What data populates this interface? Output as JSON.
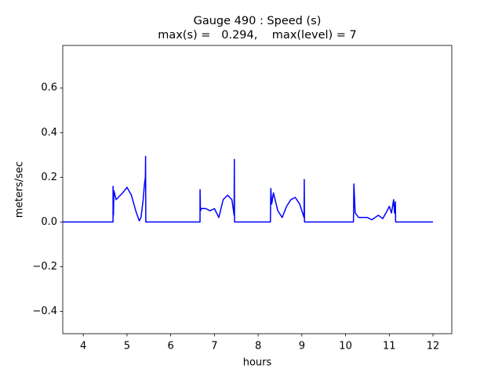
{
  "chart_data": {
    "type": "line",
    "title": "Gauge 490 : Speed (s)",
    "subtitle": "max(s) =   0.294,    max(level) = 7",
    "x_label": "hours",
    "y_label": "meters/sec",
    "color": "#0000ff",
    "x": [
      3.53,
      4.68,
      4.681,
      4.69,
      4.7,
      4.75,
      4.9,
      5.0,
      5.1,
      5.2,
      5.28,
      5.32,
      5.37,
      5.4,
      5.42,
      5.425,
      5.43,
      6.67,
      6.671,
      6.68,
      6.7,
      6.8,
      6.9,
      7.0,
      7.1,
      7.2,
      7.3,
      7.4,
      7.45,
      7.455,
      7.46,
      8.28,
      8.29,
      8.31,
      8.35,
      8.45,
      8.55,
      8.65,
      8.75,
      8.85,
      8.95,
      9.05,
      9.055,
      9.06,
      10.18,
      10.19,
      10.22,
      10.3,
      10.5,
      10.6,
      10.75,
      10.85,
      10.95,
      11.0,
      11.05,
      11.1,
      11.12,
      11.14,
      11.145,
      11.15,
      12.0
    ],
    "values": [
      0,
      0,
      0.16,
      0.03,
      0.14,
      0.1,
      0.13,
      0.155,
      0.12,
      0.05,
      0.005,
      0.02,
      0.1,
      0.17,
      0.2,
      0.294,
      0,
      0,
      0.145,
      0.05,
      0.06,
      0.06,
      0.05,
      0.06,
      0.02,
      0.1,
      0.12,
      0.1,
      0.03,
      0.28,
      0,
      0,
      0.15,
      0.08,
      0.13,
      0.05,
      0.02,
      0.07,
      0.1,
      0.11,
      0.08,
      0.02,
      0.19,
      0,
      0,
      0.17,
      0.04,
      0.02,
      0.02,
      0.01,
      0.03,
      0.015,
      0.05,
      0.07,
      0.04,
      0.1,
      0.04,
      0.09,
      0,
      0,
      0
    ],
    "xlim": [
      3.53,
      12.43
    ],
    "ylim": [
      -0.5,
      0.79
    ],
    "xticks": [
      4,
      5,
      6,
      7,
      8,
      9,
      10,
      11,
      12
    ],
    "yticks": [
      {
        "value": -0.4,
        "label": "−0.4"
      },
      {
        "value": -0.2,
        "label": "−0.2"
      },
      {
        "value": 0,
        "label": "0.0"
      },
      0.2,
      0.4,
      0.6
    ],
    "grid": false
  }
}
